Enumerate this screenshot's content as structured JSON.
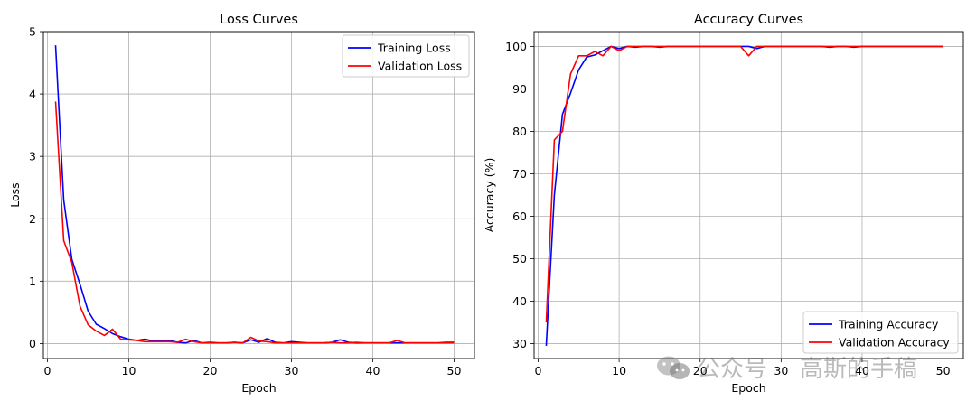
{
  "chart_data": [
    {
      "type": "line",
      "title": "Loss Curves",
      "xlabel": "Epoch",
      "ylabel": "Loss",
      "xlim": [
        -0.5,
        52.5
      ],
      "ylim": [
        -0.24,
        5.0
      ],
      "xticks": [
        0,
        10,
        20,
        30,
        40,
        50
      ],
      "yticks": [
        0,
        1,
        2,
        3,
        4,
        5
      ],
      "grid": true,
      "legend": "top-right",
      "x": [
        1,
        2,
        3,
        4,
        5,
        6,
        7,
        8,
        9,
        10,
        11,
        12,
        13,
        14,
        15,
        16,
        17,
        18,
        19,
        20,
        21,
        22,
        23,
        24,
        25,
        26,
        27,
        28,
        29,
        30,
        31,
        32,
        33,
        34,
        35,
        36,
        37,
        38,
        39,
        40,
        41,
        42,
        43,
        44,
        45,
        46,
        47,
        48,
        49,
        50
      ],
      "series": [
        {
          "name": "Training Loss",
          "color": "#0000ff",
          "values": [
            4.78,
            2.3,
            1.35,
            0.95,
            0.52,
            0.31,
            0.24,
            0.16,
            0.11,
            0.07,
            0.05,
            0.07,
            0.04,
            0.05,
            0.05,
            0.02,
            0.01,
            0.05,
            0.01,
            0.02,
            0.01,
            0.01,
            0.02,
            0.01,
            0.06,
            0.02,
            0.08,
            0.02,
            0.01,
            0.03,
            0.02,
            0.01,
            0.01,
            0.01,
            0.02,
            0.06,
            0.02,
            0.01,
            0.01,
            0.01,
            0.01,
            0.01,
            0.01,
            0.01,
            0.01,
            0.01,
            0.01,
            0.01,
            0.02,
            0.02
          ]
        },
        {
          "name": "Validation Loss",
          "color": "#ff0000",
          "values": [
            3.88,
            1.65,
            1.3,
            0.6,
            0.3,
            0.2,
            0.13,
            0.23,
            0.07,
            0.06,
            0.05,
            0.03,
            0.03,
            0.03,
            0.03,
            0.02,
            0.07,
            0.03,
            0.01,
            0.01,
            0.01,
            0.01,
            0.02,
            0.01,
            0.1,
            0.04,
            0.03,
            0.01,
            0.01,
            0.01,
            0.01,
            0.01,
            0.01,
            0.01,
            0.02,
            0.01,
            0.01,
            0.02,
            0.01,
            0.01,
            0.01,
            0.01,
            0.05,
            0.01,
            0.01,
            0.01,
            0.01,
            0.01,
            0.01,
            0.01
          ]
        }
      ]
    },
    {
      "type": "line",
      "title": "Accuracy Curves",
      "xlabel": "Epoch",
      "ylabel": "Accuracy (%)",
      "xlim": [
        -0.5,
        52.5
      ],
      "ylim": [
        26.5,
        103.5
      ],
      "xticks": [
        0,
        10,
        20,
        30,
        40,
        50
      ],
      "yticks": [
        30,
        40,
        50,
        60,
        70,
        80,
        90,
        100
      ],
      "grid": true,
      "legend": "bottom-right",
      "x": [
        1,
        2,
        3,
        4,
        5,
        6,
        7,
        8,
        9,
        10,
        11,
        12,
        13,
        14,
        15,
        16,
        17,
        18,
        19,
        20,
        21,
        22,
        23,
        24,
        25,
        26,
        27,
        28,
        29,
        30,
        31,
        32,
        33,
        34,
        35,
        36,
        37,
        38,
        39,
        40,
        41,
        42,
        43,
        44,
        45,
        46,
        47,
        48,
        49,
        50
      ],
      "series": [
        {
          "name": "Training Accuracy",
          "color": "#0000ff",
          "values": [
            29.5,
            65,
            84,
            89,
            94.5,
            97.5,
            98,
            99,
            100,
            99.5,
            100,
            99.8,
            100,
            100,
            99.8,
            100,
            100,
            100,
            100,
            100,
            100,
            100,
            100,
            100,
            100,
            100,
            99.5,
            100,
            100,
            100,
            100,
            100,
            100,
            100,
            100,
            99.8,
            100,
            100,
            99.8,
            100,
            100,
            100,
            100,
            100,
            100,
            100,
            100,
            100,
            100,
            100
          ]
        },
        {
          "name": "Validation Accuracy",
          "color": "#ff0000",
          "values": [
            35,
            78,
            80,
            93.5,
            97.8,
            97.8,
            98.8,
            97.8,
            100,
            99,
            100,
            100,
            100,
            100,
            100,
            100,
            100,
            100,
            100,
            100,
            100,
            100,
            100,
            100,
            100,
            97.8,
            100,
            100,
            100,
            100,
            100,
            100,
            100,
            100,
            100,
            100,
            100,
            100,
            100,
            100,
            100,
            100,
            100,
            100,
            100,
            100,
            100,
            100,
            100,
            100
          ]
        }
      ]
    }
  ],
  "watermark": {
    "icon": "wechat-icon",
    "text_a": "公众号",
    "text_b": "高斯的手稿",
    "color": "#8c8c8c"
  }
}
